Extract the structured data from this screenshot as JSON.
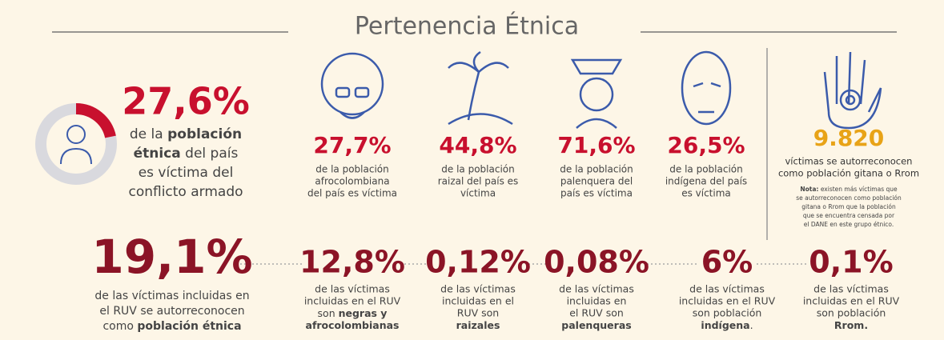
{
  "title": "Pertenencia Étnica",
  "headline": {
    "value": "27,6%",
    "lines": [
      [
        {
          "text": "de la "
        },
        {
          "text": "población",
          "bold": true
        }
      ],
      [
        {
          "text": "étnica",
          "bold": true
        },
        {
          "text": " del país"
        }
      ],
      "es víctima del",
      "conflicto armado"
    ]
  },
  "groups": [
    {
      "value": "27,7%",
      "lines": [
        "de la población",
        "afrocolombiana",
        "del país es víctima"
      ]
    },
    {
      "value": "44,8%",
      "lines": [
        "de la población",
        "raizal del país es",
        "víctima"
      ]
    },
    {
      "value": "71,6%",
      "lines": [
        "de la población",
        "palenquera del",
        "país es víctima"
      ]
    },
    {
      "value": "26,5%",
      "lines": [
        "de la población",
        "indígena del país",
        "es víctima"
      ]
    }
  ],
  "gitano": {
    "value": "9.820",
    "lines": [
      "víctimas se autorreconocen",
      "como población gitana o Rrom"
    ],
    "note": [
      [
        {
          "text": "Nota:",
          "bold": true
        },
        {
          "text": " existen más víctimas que"
        }
      ],
      "se autorreconocen como población",
      "gitana o Rrom que la población",
      "que se encuentra censada por",
      "el DANE en este grupo étnico."
    ]
  },
  "bottom": [
    {
      "value": "19,1%",
      "lines": [
        "de las víctimas incluidas en",
        "el RUV se autorreconocen",
        [
          {
            "text": "como "
          },
          {
            "text": "población étnica",
            "bold": true
          }
        ]
      ]
    },
    {
      "value": "12,8%",
      "lines": [
        "de las víctimas",
        "incluidas en el RUV",
        [
          {
            "text": "son "
          },
          {
            "text": "negras y",
            "bold": true
          }
        ],
        [
          {
            "text": "afrocolombianas",
            "bold": true
          }
        ]
      ]
    },
    {
      "value": "0,12%",
      "lines": [
        "de las víctimas",
        "incluidas en el",
        "RUV son",
        [
          {
            "text": "raizales",
            "bold": true
          }
        ]
      ]
    },
    {
      "value": "0,08%",
      "lines": [
        "de las víctimas",
        "incluidas en",
        "el RUV son",
        [
          {
            "text": "palenqueras",
            "bold": true
          }
        ]
      ]
    },
    {
      "value": "6%",
      "lines": [
        "de las víctimas",
        "incluidas en el RUV",
        "son población",
        [
          {
            "text": "indígena",
            "bold": true
          },
          {
            "text": "."
          }
        ]
      ]
    },
    {
      "value": "0,1%",
      "lines": [
        "de las víctimas",
        "incluidas en el RUV",
        "son población",
        [
          {
            "text": "Rrom.",
            "bold": true
          }
        ]
      ]
    }
  ]
}
